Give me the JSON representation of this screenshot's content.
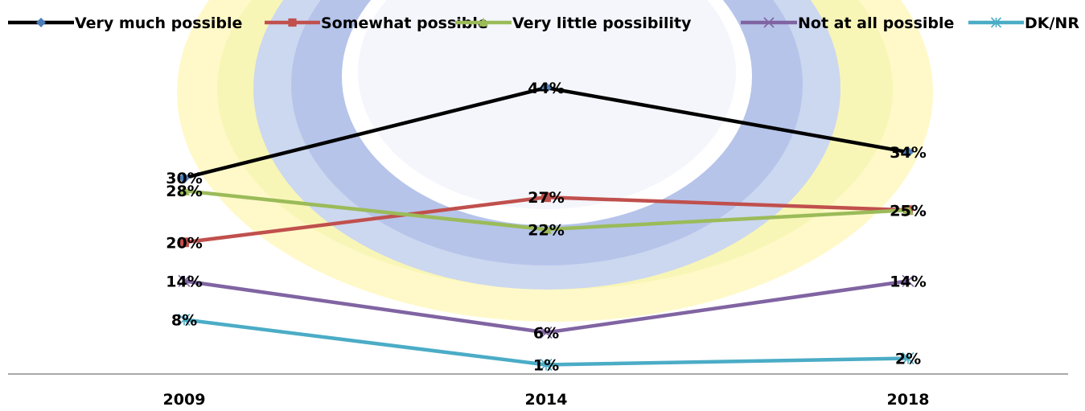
{
  "chart_data": {
    "type": "line",
    "x": [
      "2009",
      "2014",
      "2018"
    ],
    "ylim": [
      0,
      50
    ],
    "grid": false,
    "legend_position": "top",
    "series": [
      {
        "name": "Very much possible",
        "values": [
          30,
          44,
          34
        ],
        "labels": [
          "30%",
          "44%",
          "34%"
        ],
        "color": "#000000",
        "marker": "diamond",
        "marker_color": "#4a7ebb"
      },
      {
        "name": "Somewhat possible",
        "values": [
          20,
          27,
          25
        ],
        "labels": [
          "20%",
          "27%",
          "25%"
        ],
        "color": "#c0504d",
        "marker": "square",
        "marker_color": "#c0504d"
      },
      {
        "name": "Very little possibility",
        "values": [
          28,
          22,
          25
        ],
        "labels": [
          "28%",
          "22%",
          "25%"
        ],
        "color": "#9bbb59",
        "marker": "triangle",
        "marker_color": "#9bbb59"
      },
      {
        "name": "Not at all possible",
        "values": [
          14,
          6,
          14
        ],
        "labels": [
          "14%",
          "6%",
          "14%"
        ],
        "color": "#8064a2",
        "marker": "x",
        "marker_color": "#8064a2"
      },
      {
        "name": "DK/NR",
        "values": [
          8,
          1,
          2
        ],
        "labels": [
          "8%",
          "1%",
          "2%"
        ],
        "color": "#4bacc6",
        "marker": "star",
        "marker_color": "#4bacc6"
      }
    ]
  }
}
